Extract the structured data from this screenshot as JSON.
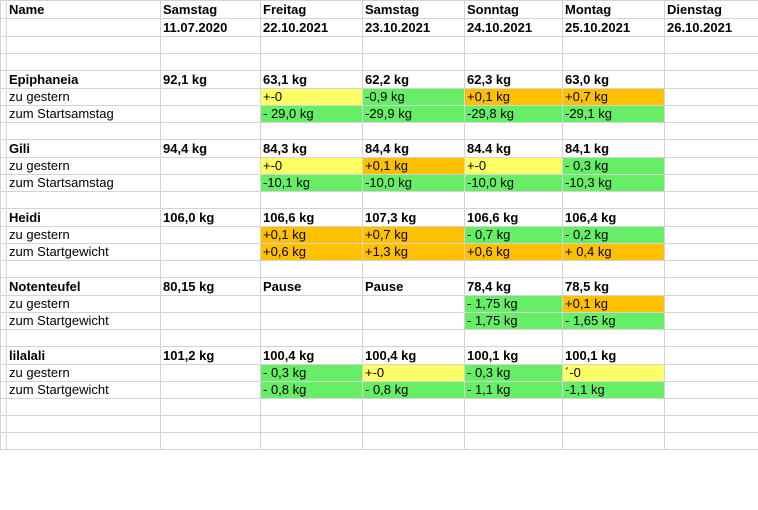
{
  "columns": [
    {
      "day": "Name",
      "date": ""
    },
    {
      "day": "Samstag",
      "date": "11.07.2020"
    },
    {
      "day": "Freitag",
      "date": "22.10.2021"
    },
    {
      "day": "Samstag",
      "date": "23.10.2021"
    },
    {
      "day": "Sonntag",
      "date": "24.10.2021"
    },
    {
      "day": "Montag",
      "date": "25.10.2021"
    },
    {
      "day": "Dienstag",
      "date": "26.10.2021"
    }
  ],
  "colors": {
    "yellow": "#ffff66",
    "orange": "#ffc000",
    "green": "#66ee66"
  },
  "people": [
    {
      "name": "Epiphaneia",
      "start": "92,1 kg",
      "weights": [
        "63,1 kg",
        "62,2 kg",
        "62,3 kg",
        "63,0 kg",
        ""
      ],
      "diff_label": "zu gestern",
      "diff": [
        {
          "v": "+-0",
          "c": "yellow"
        },
        {
          "v": "-0,9 kg",
          "c": "green"
        },
        {
          "v": "+0,1 kg",
          "c": "orange"
        },
        {
          "v": "+0,7 kg",
          "c": "orange"
        },
        {
          "v": "",
          "c": ""
        }
      ],
      "total_label": "zum Startsamstag",
      "total": [
        {
          "v": "- 29,0 kg",
          "c": "green"
        },
        {
          "v": "-29,9 kg",
          "c": "green"
        },
        {
          "v": "-29,8 kg",
          "c": "green"
        },
        {
          "v": "-29,1 kg",
          "c": "green"
        },
        {
          "v": "",
          "c": ""
        }
      ]
    },
    {
      "name": "Gili",
      "start": "94,4 kg",
      "weights": [
        "84,3 kg",
        "84,4 kg",
        "84.4 kg",
        "84,1 kg",
        ""
      ],
      "diff_label": "zu gestern",
      "diff": [
        {
          "v": "+-0",
          "c": "yellow"
        },
        {
          "v": "+0,1 kg",
          "c": "orange"
        },
        {
          "v": "+-0",
          "c": "yellow"
        },
        {
          "v": "- 0,3 kg",
          "c": "green"
        },
        {
          "v": "",
          "c": ""
        }
      ],
      "total_label": "zum Startsamstag",
      "total": [
        {
          "v": "-10,1 kg",
          "c": "green"
        },
        {
          "v": "-10,0 kg",
          "c": "green"
        },
        {
          "v": "-10,0 kg",
          "c": "green"
        },
        {
          "v": "-10,3 kg",
          "c": "green"
        },
        {
          "v": "",
          "c": ""
        }
      ]
    },
    {
      "name": "Heidi",
      "start": "106,0 kg",
      "weights": [
        "106,6 kg",
        "107,3 kg",
        "106,6 kg",
        "106,4 kg",
        ""
      ],
      "diff_label": "zu gestern",
      "diff": [
        {
          "v": "+0,1 kg",
          "c": "orange"
        },
        {
          "v": "+0,7 kg",
          "c": "orange"
        },
        {
          "v": "- 0,7 kg",
          "c": "green"
        },
        {
          "v": "- 0,2 kg",
          "c": "green"
        },
        {
          "v": "",
          "c": ""
        }
      ],
      "total_label": "zum Startgewicht",
      "total": [
        {
          "v": "+0,6 kg",
          "c": "orange"
        },
        {
          "v": "+1,3 kg",
          "c": "orange"
        },
        {
          "v": "+0,6 kg",
          "c": "orange"
        },
        {
          "v": "+ 0,4 kg",
          "c": "orange"
        },
        {
          "v": "",
          "c": ""
        }
      ]
    },
    {
      "name": "Notenteufel",
      "start": "80,15 kg",
      "weights": [
        "Pause",
        "Pause",
        "78,4 kg",
        "78,5 kg",
        ""
      ],
      "diff_label": "zu gestern",
      "diff": [
        {
          "v": "",
          "c": ""
        },
        {
          "v": "",
          "c": ""
        },
        {
          "v": "- 1,75 kg",
          "c": "green"
        },
        {
          "v": "+0,1 kg",
          "c": "orange"
        },
        {
          "v": "",
          "c": ""
        }
      ],
      "total_label": "zum Startgewicht",
      "total": [
        {
          "v": "",
          "c": ""
        },
        {
          "v": "",
          "c": ""
        },
        {
          "v": "- 1,75 kg",
          "c": "green"
        },
        {
          "v": "- 1,65 kg",
          "c": "green"
        },
        {
          "v": "",
          "c": ""
        }
      ]
    },
    {
      "name": "lilalali",
      "start": "101,2 kg",
      "weights": [
        "100,4 kg",
        "100,4 kg",
        "100,1 kg",
        "100,1 kg",
        ""
      ],
      "diff_label": "zu gestern",
      "diff": [
        {
          "v": "- 0,3 kg",
          "c": "green"
        },
        {
          "v": "+-0",
          "c": "yellow"
        },
        {
          "v": "- 0,3 kg",
          "c": "green"
        },
        {
          "v": "´-0",
          "c": "yellow"
        },
        {
          "v": "",
          "c": ""
        }
      ],
      "total_label": "zum Startgewicht",
      "total": [
        {
          "v": "- 0,8 kg",
          "c": "green"
        },
        {
          "v": "- 0,8 kg",
          "c": "green"
        },
        {
          "v": "- 1,1 kg",
          "c": "green"
        },
        {
          "v": "-1,1 kg",
          "c": "green"
        },
        {
          "v": "",
          "c": ""
        }
      ]
    }
  ]
}
